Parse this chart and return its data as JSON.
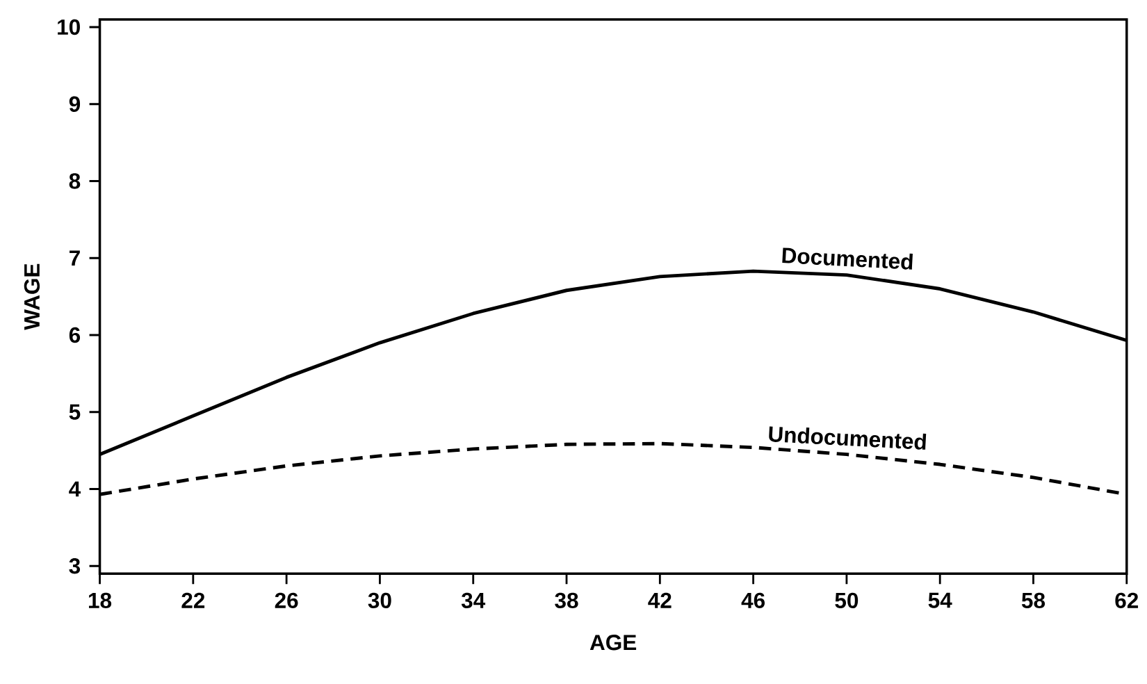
{
  "chart_data": {
    "type": "line",
    "xlabel": "AGE",
    "ylabel": "WAGE",
    "x": [
      18,
      22,
      26,
      30,
      34,
      38,
      42,
      46,
      50,
      54,
      58,
      62
    ],
    "series": [
      {
        "name": "Documented",
        "color": "#000000",
        "line_style": "solid",
        "values": [
          4.45,
          4.95,
          5.45,
          5.9,
          6.28,
          6.58,
          6.76,
          6.83,
          6.78,
          6.6,
          6.3,
          5.93
        ]
      },
      {
        "name": "Undocumented",
        "color": "#000000",
        "line_style": "dashed",
        "values": [
          3.93,
          4.13,
          4.3,
          4.43,
          4.52,
          4.58,
          4.59,
          4.54,
          4.45,
          4.32,
          4.15,
          3.93
        ]
      }
    ],
    "xlim": [
      18,
      62
    ],
    "ylim": [
      2.9,
      10.1
    ],
    "xticks": [
      18,
      22,
      26,
      30,
      34,
      38,
      42,
      46,
      50,
      54,
      58,
      62
    ],
    "yticks": [
      3,
      4,
      5,
      6,
      7,
      8,
      9,
      10
    ],
    "grid": false,
    "legend": false,
    "marker": "none"
  }
}
